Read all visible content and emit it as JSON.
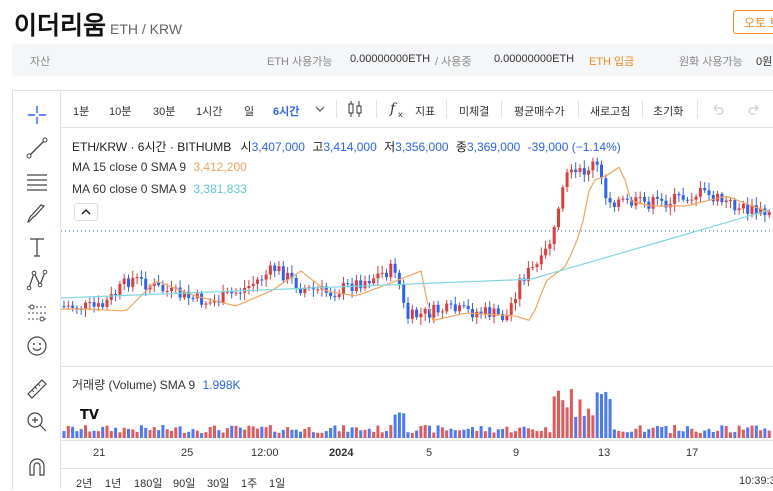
{
  "header": {
    "title": "이더리움",
    "subtitle": "ETH / KRW",
    "auto_button": "오토 트"
  },
  "asset_bar": {
    "label": "자산",
    "eth_avail_label": "ETH 사용가능",
    "eth_avail_value": "0.00000000ETH",
    "in_use_label": "/ 사용중",
    "in_use_value": "0.00000000ETH",
    "deposit_label": "ETH 입금",
    "krw_avail_label": "원화 사용가능",
    "krw_avail_value": "0원"
  },
  "toolbar": {
    "intervals": [
      "1분",
      "10분",
      "30분",
      "1시간",
      "일",
      "6시간"
    ],
    "indicator_label": "지표",
    "pending_label": "미체결",
    "avg_price_label": "평균매수가",
    "refresh_label": "새로고침",
    "reset_label": "초기화"
  },
  "legend": {
    "symbol": "ETH/KRW · 6시간 · BITHUMB",
    "open_label": "시",
    "open": "3,407,000",
    "high_label": "고",
    "high": "3,414,000",
    "low_label": "저",
    "low": "3,356,000",
    "close_label": "종",
    "close": "3,369,000",
    "change": "-39,000 (−1.14%)",
    "ma15_label": "MA 15 close 0 SMA 9",
    "ma15_value": "3,412,200",
    "ma60_label": "MA 60 close 0 SMA 9",
    "ma60_value": "3,381,833",
    "volume_label": "거래량 (Volume) SMA 9",
    "volume_value": "1.998K"
  },
  "time_axis": {
    "ticks": [
      "21",
      "25",
      "12:00",
      "2024",
      "5",
      "9",
      "13",
      "17"
    ],
    "clock": "10:39:3"
  },
  "ranges": [
    "2년",
    "1년",
    "180일",
    "90일",
    "30일",
    "1주",
    "1일"
  ],
  "colors": {
    "up": "#e03c3c",
    "down": "#2962ff",
    "ma15": "#f4a460",
    "ma60": "#7fd6e0",
    "accent": "#f08a24"
  },
  "chart_data": {
    "type": "candlestick",
    "series": [
      {
        "name": "MA 15 close 0 SMA 9",
        "value": "3,412,200"
      },
      {
        "name": "MA 60 close 0 SMA 9",
        "value": "3,381,833"
      }
    ],
    "x_ticks": [
      "21",
      "25",
      "12:00",
      "2024",
      "5",
      "9",
      "13",
      "17"
    ],
    "last": {
      "open": 3407000,
      "high": 3414000,
      "low": 3356000,
      "close": 3369000,
      "change": -39000,
      "change_pct": -1.14
    },
    "volume_sma": "1.998K"
  }
}
